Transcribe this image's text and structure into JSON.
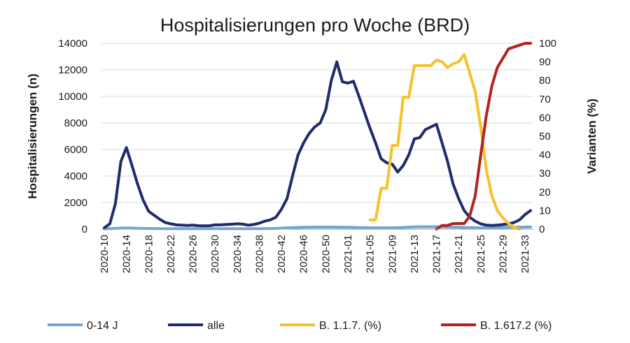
{
  "chart_data": {
    "type": "line",
    "title": "Hospitalisierungen pro Woche (BRD)",
    "ylabel": "Hospitalisierungen (n)",
    "y2label": "Varianten (%)",
    "ylim": [
      0,
      14000
    ],
    "y2lim": [
      0,
      100
    ],
    "yticks": [
      "0",
      "2000",
      "4000",
      "6000",
      "8000",
      "10000",
      "12000",
      "14000"
    ],
    "y2ticks": [
      "0",
      "10",
      "20",
      "30",
      "40",
      "50",
      "60",
      "70",
      "80",
      "90",
      "100"
    ],
    "xticks": [
      "2020-10",
      "2020-14",
      "2020-18",
      "2020-22",
      "2020-26",
      "2020-30",
      "2020-34",
      "2020-38",
      "2020-42",
      "2020-46",
      "2020-50",
      "2021-01",
      "2021-05",
      "2021-09",
      "2021-13",
      "2021-17",
      "2021-21",
      "2021-25",
      "2021-29",
      "2021-33"
    ],
    "grid": true,
    "legend": "bottom",
    "x": [
      "2020-10",
      "2020-11",
      "2020-12",
      "2020-13",
      "2020-14",
      "2020-15",
      "2020-16",
      "2020-17",
      "2020-18",
      "2020-19",
      "2020-20",
      "2020-21",
      "2020-22",
      "2020-23",
      "2020-24",
      "2020-25",
      "2020-26",
      "2020-27",
      "2020-28",
      "2020-29",
      "2020-30",
      "2020-31",
      "2020-32",
      "2020-33",
      "2020-34",
      "2020-35",
      "2020-36",
      "2020-37",
      "2020-38",
      "2020-39",
      "2020-40",
      "2020-41",
      "2020-42",
      "2020-43",
      "2020-44",
      "2020-45",
      "2020-46",
      "2020-47",
      "2020-48",
      "2020-49",
      "2020-50",
      "2020-51",
      "2020-52",
      "2020-53",
      "2021-01",
      "2021-02",
      "2021-03",
      "2021-04",
      "2021-05",
      "2021-06",
      "2021-07",
      "2021-08",
      "2021-09",
      "2021-10",
      "2021-11",
      "2021-12",
      "2021-13",
      "2021-14",
      "2021-15",
      "2021-16",
      "2021-17",
      "2021-18",
      "2021-19",
      "2021-20",
      "2021-21",
      "2021-22",
      "2021-23",
      "2021-24",
      "2021-25",
      "2021-26",
      "2021-27",
      "2021-28",
      "2021-29",
      "2021-30",
      "2021-31",
      "2021-32",
      "2021-33",
      "2021-34"
    ],
    "series": [
      {
        "name": "0-14 J",
        "axis": "left",
        "color": "#6fa8d8",
        "values": [
          20,
          40,
          60,
          80,
          90,
          80,
          70,
          60,
          50,
          40,
          40,
          30,
          30,
          30,
          30,
          30,
          30,
          30,
          30,
          30,
          30,
          30,
          30,
          30,
          30,
          30,
          30,
          40,
          40,
          40,
          50,
          60,
          80,
          100,
          120,
          130,
          140,
          150,
          160,
          160,
          160,
          150,
          150,
          140,
          140,
          130,
          120,
          110,
          100,
          100,
          100,
          100,
          100,
          110,
          130,
          150,
          170,
          180,
          180,
          180,
          180,
          170,
          160,
          150,
          140,
          130,
          120,
          110,
          100,
          100,
          110,
          120,
          130,
          140,
          150,
          150,
          160,
          170
        ]
      },
      {
        "name": "alle",
        "axis": "left",
        "color": "#1f2b6e",
        "values": [
          100,
          400,
          1900,
          5100,
          6150,
          4800,
          3400,
          2200,
          1350,
          1050,
          750,
          500,
          400,
          320,
          300,
          280,
          300,
          260,
          250,
          260,
          320,
          320,
          350,
          370,
          400,
          380,
          300,
          350,
          450,
          600,
          700,
          900,
          1500,
          2300,
          4000,
          5600,
          6500,
          7200,
          7700,
          8000,
          9000,
          11200,
          12600,
          11100,
          11000,
          11150,
          10000,
          8800,
          7600,
          6500,
          5300,
          5000,
          4900,
          4300,
          4800,
          5600,
          6800,
          6900,
          7500,
          7700,
          7900,
          6500,
          5100,
          3400,
          2300,
          1400,
          900,
          600,
          400,
          300,
          280,
          300,
          350,
          400,
          500,
          700,
          1100,
          1400
        ]
      },
      {
        "name": "B. 1.1.7. (%)",
        "axis": "right",
        "color": "#f6c12a",
        "values": [
          null,
          null,
          null,
          null,
          null,
          null,
          null,
          null,
          null,
          null,
          null,
          null,
          null,
          null,
          null,
          null,
          null,
          null,
          null,
          null,
          null,
          null,
          null,
          null,
          null,
          null,
          null,
          null,
          null,
          null,
          null,
          null,
          null,
          null,
          null,
          null,
          null,
          null,
          null,
          null,
          null,
          null,
          null,
          null,
          null,
          null,
          null,
          null,
          5,
          5,
          22,
          22,
          45,
          45,
          71,
          71,
          88,
          88,
          88,
          88,
          91,
          90,
          87,
          89,
          90,
          94,
          84,
          74,
          55,
          32,
          18,
          10,
          6,
          3,
          1,
          0,
          null,
          null
        ]
      },
      {
        "name": "B. 1.617.2 (%)",
        "axis": "right",
        "color": "#b3231d",
        "values": [
          null,
          null,
          null,
          null,
          null,
          null,
          null,
          null,
          null,
          null,
          null,
          null,
          null,
          null,
          null,
          null,
          null,
          null,
          null,
          null,
          null,
          null,
          null,
          null,
          null,
          null,
          null,
          null,
          null,
          null,
          null,
          null,
          null,
          null,
          null,
          null,
          null,
          null,
          null,
          null,
          null,
          null,
          null,
          null,
          null,
          null,
          null,
          null,
          null,
          null,
          null,
          null,
          null,
          null,
          null,
          null,
          null,
          null,
          null,
          null,
          0,
          2,
          2,
          3,
          3,
          3,
          7,
          18,
          40,
          61,
          77,
          87,
          92,
          97,
          98,
          99,
          100,
          100
        ]
      }
    ]
  }
}
